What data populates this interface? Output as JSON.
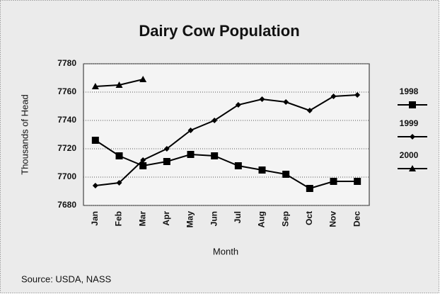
{
  "chart_data": {
    "type": "line",
    "title": "Dairy Cow Population",
    "y_label": "Thousands of Head",
    "x_label": "Month",
    "source": "Source:  USDA, NASS",
    "categories": [
      "Jan",
      "Feb",
      "Mar",
      "Apr",
      "May",
      "Jun",
      "Jul",
      "Aug",
      "Sep",
      "Oct",
      "Nov",
      "Dec"
    ],
    "series": [
      {
        "name": "1998",
        "color": "#000000",
        "marker": "square",
        "values": [
          7726,
          7715,
          7708,
          7711,
          7716,
          7715,
          7708,
          7705,
          7702,
          7692,
          7697,
          7697
        ]
      },
      {
        "name": "1999",
        "color": "#000000",
        "marker": "diamond",
        "values": [
          7694,
          7696,
          7712,
          7720,
          7733,
          7740,
          7751,
          7755,
          7753,
          7747,
          7757,
          7758
        ]
      },
      {
        "name": "2000",
        "color": "#000000",
        "marker": "triangle",
        "values": [
          7764,
          7765,
          7769,
          null,
          null,
          null,
          null,
          null,
          null,
          null,
          null,
          null
        ]
      }
    ],
    "ylim": [
      7680,
      7780
    ],
    "yticks": [
      7680,
      7700,
      7720,
      7740,
      7760,
      7780
    ],
    "grid": true,
    "legend": "right"
  }
}
